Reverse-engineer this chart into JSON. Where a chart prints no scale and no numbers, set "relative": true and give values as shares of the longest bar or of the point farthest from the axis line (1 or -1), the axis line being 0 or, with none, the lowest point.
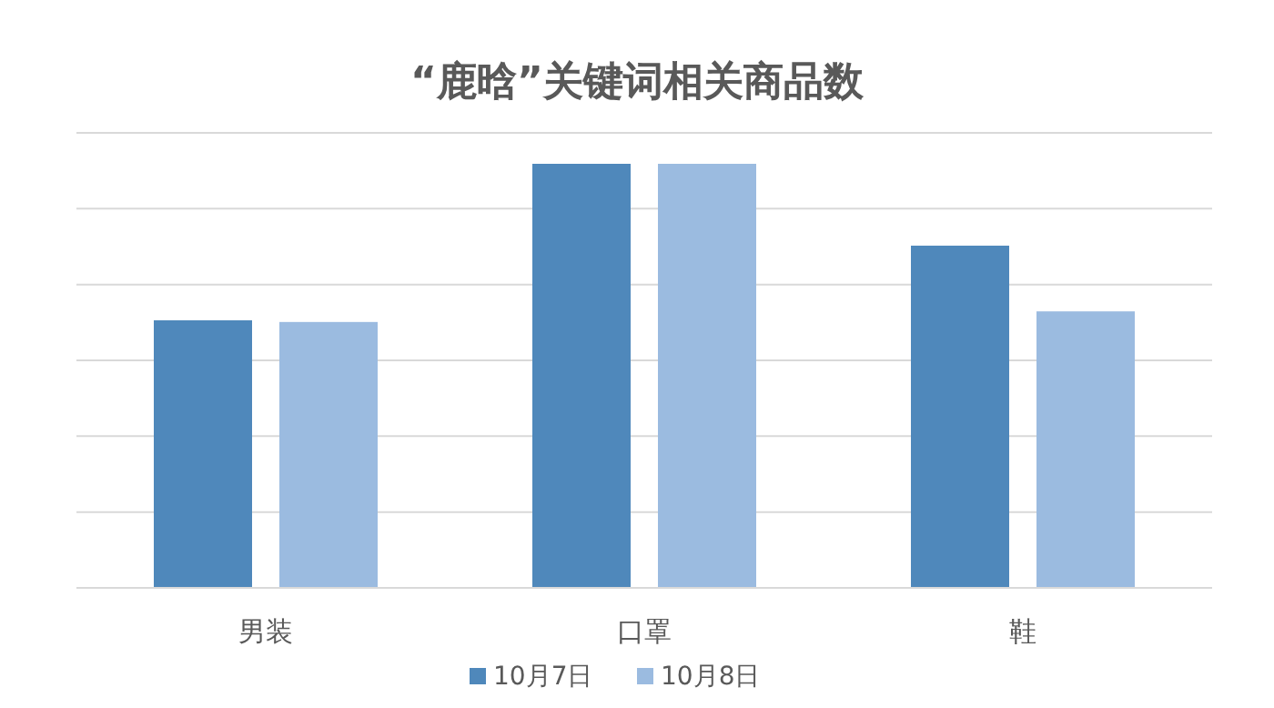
{
  "chart_data": {
    "type": "bar",
    "title": "“鹿晗”关键词相关商品数",
    "categories": [
      "男装",
      "口罩",
      "鞋"
    ],
    "relative": true,
    "grid": true,
    "legend": "bottom",
    "series": [
      {
        "name": "10月7日",
        "color": "#4f88bb",
        "values": [
          0.631,
          1,
          0.807
        ]
      },
      {
        "name": "10月8日",
        "color": "#9bbbe0",
        "values": [
          0.627,
          1,
          0.652
        ]
      }
    ]
  }
}
